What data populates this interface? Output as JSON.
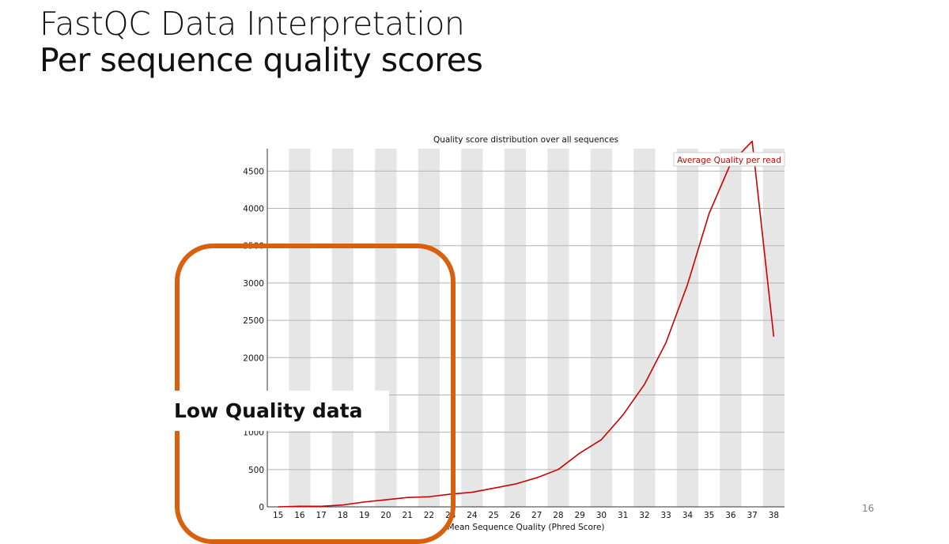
{
  "slide": {
    "title_line1": "FastQC Data Interpretation",
    "title_line2": "Per sequence quality scores",
    "callout_label": "Low Quality data",
    "slide_number": "16"
  },
  "chart_data": {
    "type": "line",
    "title": "Quality score distribution over all sequences",
    "xlabel": "Mean Sequence Quality (Phred Score)",
    "ylabel": "",
    "x": [
      15,
      16,
      17,
      18,
      19,
      20,
      21,
      22,
      23,
      24,
      25,
      26,
      27,
      28,
      29,
      30,
      31,
      32,
      33,
      34,
      35,
      36,
      37,
      38
    ],
    "x_tick_labels": [
      "15",
      "16",
      "17",
      "18",
      "19",
      "20",
      "21",
      "22",
      "23",
      "24",
      "25",
      "26",
      "27",
      "28",
      "29",
      "30",
      "31",
      "32",
      "33",
      "34",
      "35",
      "36",
      "37",
      "38"
    ],
    "y_tick_labels": [
      "0",
      "500",
      "1000",
      "1500",
      "2000",
      "2500",
      "3000",
      "3500",
      "4000",
      "4500"
    ],
    "y_ticks": [
      0,
      500,
      1000,
      1500,
      2000,
      2500,
      3000,
      3500,
      4000,
      4500
    ],
    "xlim": [
      14.5,
      38.5
    ],
    "ylim": [
      0,
      4800
    ],
    "grid": true,
    "alternating_column_shading": true,
    "legend_position": "top-right",
    "series": [
      {
        "name": "Average Quality per read",
        "color": "#cc0000",
        "values": [
          0,
          8,
          8,
          25,
          65,
          95,
          125,
          135,
          170,
          195,
          250,
          305,
          390,
          500,
          720,
          900,
          1230,
          1640,
          2200,
          2980,
          3930,
          4600,
          4900,
          2280
        ]
      }
    ],
    "colors": {
      "shade": "#e6e6e6",
      "grid": "#b3b3b3",
      "axis": "#333333",
      "callout": "#d9600f"
    }
  }
}
